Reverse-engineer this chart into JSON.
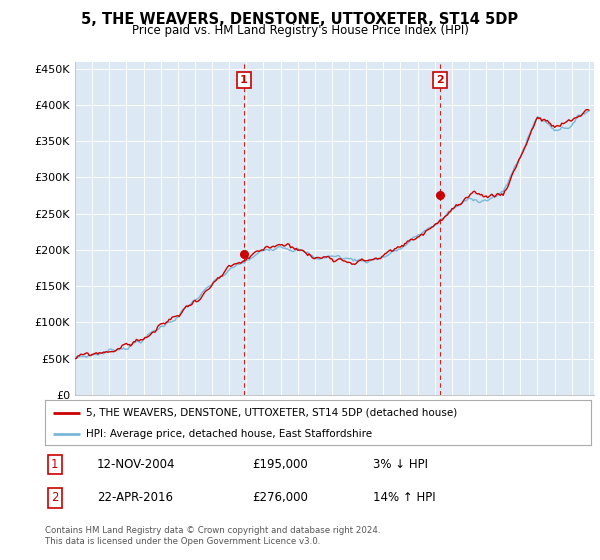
{
  "title": "5, THE WEAVERS, DENSTONE, UTTOXETER, ST14 5DP",
  "subtitle": "Price paid vs. HM Land Registry's House Price Index (HPI)",
  "background_color": "#dce9f5",
  "plot_bg_color": "#dce9f5",
  "legend_line1": "5, THE WEAVERS, DENSTONE, UTTOXETER, ST14 5DP (detached house)",
  "legend_line2": "HPI: Average price, detached house, East Staffordshire",
  "footnote": "Contains HM Land Registry data © Crown copyright and database right 2024.\nThis data is licensed under the Open Government Licence v3.0.",
  "annotation1_date": "12-NOV-2004",
  "annotation1_price": "£195,000",
  "annotation1_hpi": "3% ↓ HPI",
  "annotation2_date": "22-APR-2016",
  "annotation2_price": "£276,000",
  "annotation2_hpi": "14% ↑ HPI",
  "ylim": [
    0,
    460000
  ],
  "yticks": [
    0,
    50000,
    100000,
    150000,
    200000,
    250000,
    300000,
    350000,
    400000,
    450000
  ],
  "ytick_labels": [
    "£0",
    "£50K",
    "£100K",
    "£150K",
    "£200K",
    "£250K",
    "£300K",
    "£350K",
    "£400K",
    "£450K"
  ],
  "hpi_color": "#7ab8d9",
  "price_color": "#cc0000",
  "marker_color": "#cc0000",
  "annotation_line_color": "#cc0000",
  "marker1_x": 2004.87,
  "marker1_y": 195000,
  "marker2_x": 2016.31,
  "marker2_y": 276000,
  "xlim_left": 1995,
  "xlim_right": 2025.3
}
